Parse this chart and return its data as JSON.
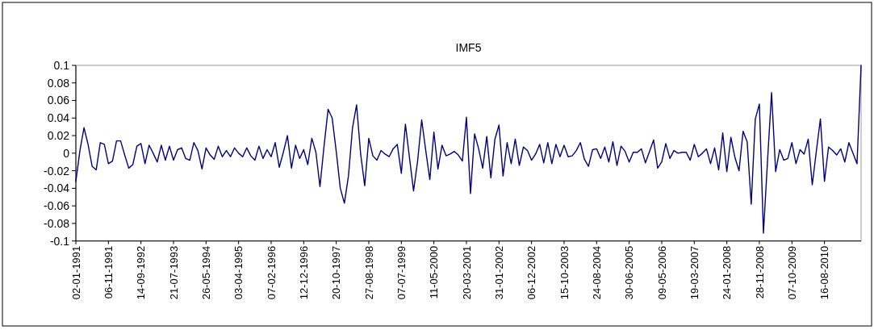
{
  "chart_data": {
    "type": "line",
    "title": "IMF5",
    "categories": [
      "02-01-1991",
      null,
      null,
      null,
      null,
      null,
      null,
      null,
      "06-11-1991",
      null,
      null,
      null,
      null,
      null,
      null,
      null,
      "14-09-1992",
      null,
      null,
      null,
      null,
      null,
      null,
      null,
      "21-07-1993",
      null,
      null,
      null,
      null,
      null,
      null,
      null,
      "26-05-1994",
      null,
      null,
      null,
      null,
      null,
      null,
      null,
      "03-04-1995",
      null,
      null,
      null,
      null,
      null,
      null,
      null,
      "07-02-1996",
      null,
      null,
      null,
      null,
      null,
      null,
      null,
      "12-12-1996",
      null,
      null,
      null,
      null,
      null,
      null,
      null,
      "20-10-1997",
      null,
      null,
      null,
      null,
      null,
      null,
      null,
      "27-08-1998",
      null,
      null,
      null,
      null,
      null,
      null,
      null,
      "07-07-1999",
      null,
      null,
      null,
      null,
      null,
      null,
      null,
      "11-05-2000",
      null,
      null,
      null,
      null,
      null,
      null,
      null,
      "20-03-2001",
      null,
      null,
      null,
      null,
      null,
      null,
      null,
      "31-01-2002",
      null,
      null,
      null,
      null,
      null,
      null,
      null,
      "06-12-2002",
      null,
      null,
      null,
      null,
      null,
      null,
      null,
      "15-10-2003",
      null,
      null,
      null,
      null,
      null,
      null,
      null,
      "24-08-2004",
      null,
      null,
      null,
      null,
      null,
      null,
      null,
      "30-06-2005",
      null,
      null,
      null,
      null,
      null,
      null,
      null,
      "09-05-2006",
      null,
      null,
      null,
      null,
      null,
      null,
      null,
      "19-03-2007",
      null,
      null,
      null,
      null,
      null,
      null,
      null,
      "24-01-2008",
      null,
      null,
      null,
      null,
      null,
      null,
      null,
      "28-11-2008",
      null,
      null,
      null,
      null,
      null,
      null,
      null,
      "07-10-2009",
      null,
      null,
      null,
      null,
      null,
      null,
      null,
      "16-08-2010",
      null,
      null,
      null,
      null,
      null,
      null,
      null,
      null,
      null
    ],
    "series": [
      {
        "color": "#000080",
        "values": [
          -0.032,
          0.003,
          0.029,
          0.01,
          -0.015,
          -0.019,
          0.012,
          0.01,
          -0.012,
          -0.009,
          0.014,
          0.014,
          -0.002,
          -0.017,
          -0.013,
          0.008,
          0.011,
          -0.012,
          0.009,
          0.0,
          -0.01,
          0.009,
          -0.008,
          0.008,
          -0.008,
          0.004,
          0.006,
          -0.006,
          -0.008,
          0.012,
          0.003,
          -0.018,
          0.006,
          -0.002,
          -0.007,
          0.008,
          -0.004,
          0.003,
          -0.004,
          0.006,
          0.0,
          -0.004,
          0.006,
          -0.003,
          -0.008,
          0.008,
          -0.006,
          0.004,
          -0.004,
          0.012,
          -0.016,
          0.001,
          0.02,
          -0.017,
          0.009,
          -0.006,
          0.004,
          -0.013,
          0.017,
          0.001,
          -0.038,
          0.008,
          0.05,
          0.04,
          0.002,
          -0.04,
          -0.057,
          -0.026,
          0.029,
          0.055,
          -0.001,
          -0.037,
          0.017,
          -0.003,
          -0.008,
          0.003,
          -0.001,
          -0.004,
          0.005,
          0.01,
          -0.023,
          0.033,
          -0.005,
          -0.043,
          -0.009,
          0.038,
          0.003,
          -0.03,
          0.024,
          -0.018,
          0.009,
          -0.003,
          -0.001,
          0.002,
          -0.002,
          -0.009,
          0.041,
          -0.046,
          0.022,
          0.005,
          -0.017,
          0.019,
          -0.028,
          0.016,
          0.032,
          -0.026,
          0.012,
          -0.012,
          0.016,
          -0.014,
          0.007,
          0.003,
          -0.008,
          -0.001,
          0.01,
          -0.011,
          0.012,
          -0.012,
          0.01,
          -0.004,
          0.009,
          -0.004,
          -0.003,
          0.003,
          0.012,
          -0.007,
          -0.015,
          0.004,
          0.005,
          -0.006,
          0.007,
          -0.01,
          0.013,
          -0.014,
          0.008,
          0.002,
          -0.01,
          0.001,
          0.001,
          0.005,
          -0.011,
          0.002,
          0.015,
          -0.017,
          -0.01,
          0.011,
          -0.006,
          0.003,
          0.0,
          0.001,
          0.001,
          -0.008,
          0.01,
          -0.004,
          0.0,
          0.005,
          -0.012,
          0.006,
          -0.019,
          0.023,
          -0.021,
          0.018,
          -0.005,
          -0.02,
          0.025,
          0.013,
          -0.058,
          0.039,
          0.056,
          -0.091,
          -0.009,
          0.069,
          -0.021,
          0.004,
          -0.008,
          -0.006,
          0.012,
          -0.012,
          0.004,
          -0.001,
          0.016,
          -0.036,
          0.002,
          0.039,
          -0.032,
          0.007,
          0.003,
          -0.002,
          0.005,
          -0.01,
          0.012,
          0.0,
          -0.012,
          0.1
        ]
      }
    ],
    "ylim": [
      -0.1,
      0.1
    ],
    "yticks": [
      -0.1,
      -0.08,
      -0.06,
      -0.04,
      -0.02,
      0,
      0.02,
      0.04,
      0.06,
      0.08,
      0.1
    ]
  }
}
